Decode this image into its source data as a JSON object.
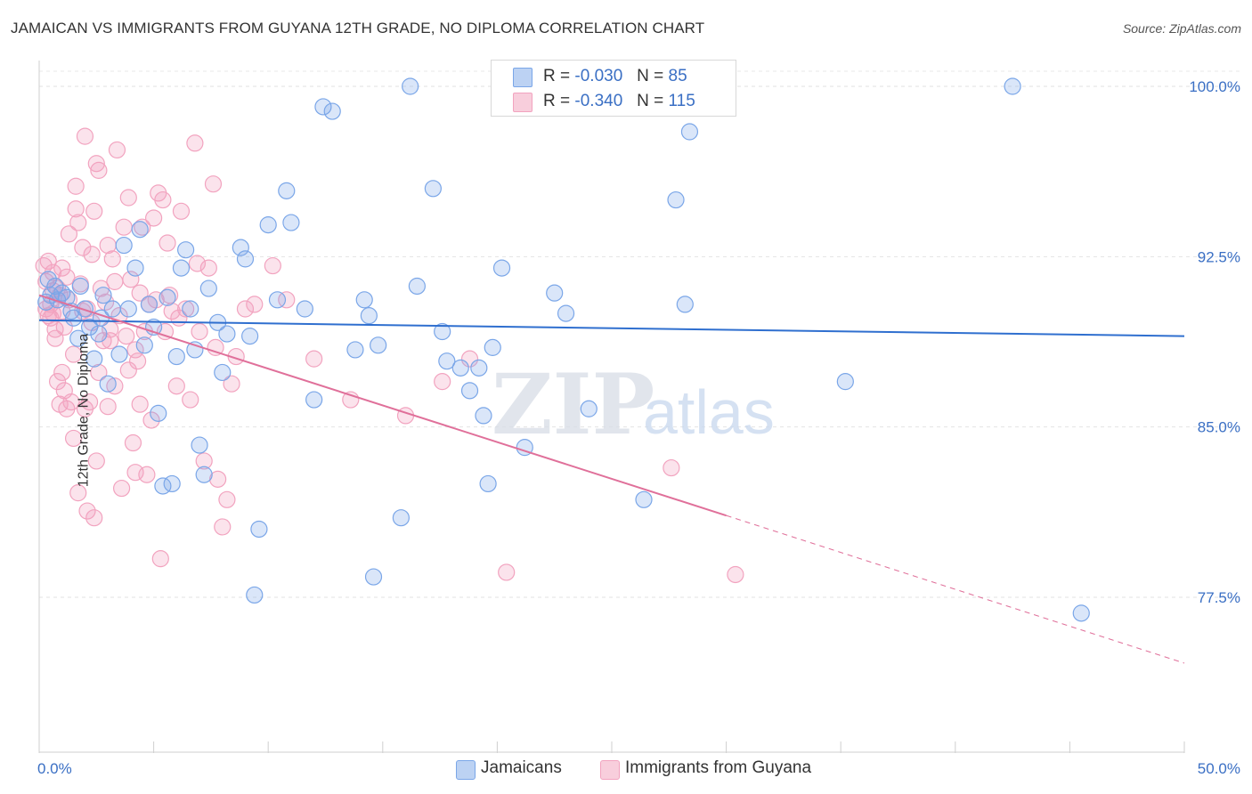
{
  "header": {
    "title": "JAMAICAN VS IMMIGRANTS FROM GUYANA 12TH GRADE, NO DIPLOMA CORRELATION CHART",
    "source": "Source: ZipAtlas.com"
  },
  "legend": {
    "r_label": "R =",
    "n_label": "N =",
    "series": [
      {
        "name": "Jamaicans",
        "r": "-0.030",
        "n": "85",
        "color": "#7aa6e8"
      },
      {
        "name": "Immigrants from Guyana",
        "r": "-0.340",
        "n": "115",
        "color": "#f2a3bf"
      }
    ]
  },
  "watermark": {
    "zip": "ZIP",
    "atlas": "atlas"
  },
  "chart_data": {
    "type": "scatter",
    "title": "JAMAICAN VS IMMIGRANTS FROM GUYANA 12TH GRADE, NO DIPLOMA CORRELATION CHART",
    "ylabel": "12th Grade, No Diploma",
    "xlabel": "",
    "xlim": [
      0,
      50
    ],
    "ylim": [
      71.0,
      101.0
    ],
    "x_tick_labels": [
      "0.0%",
      "50.0%"
    ],
    "y_ticks": [
      77.5,
      85.0,
      92.5,
      100.0
    ],
    "y_tick_labels": [
      "77.5%",
      "85.0%",
      "92.5%",
      "100.0%"
    ],
    "grid": "horizontal dashed",
    "legend_position": "top-center",
    "series": [
      {
        "name": "Jamaicans",
        "color": "#7aa6e8",
        "trend": {
          "x": [
            0,
            50
          ],
          "y": [
            89.7,
            89.0
          ],
          "dashed_from": null
        },
        "points": [
          [
            0.4,
            91.5
          ],
          [
            0.5,
            90.8
          ],
          [
            0.7,
            91.2
          ],
          [
            0.8,
            90.6
          ],
          [
            1.0,
            90.9
          ],
          [
            1.2,
            90.7
          ],
          [
            1.4,
            90.1
          ],
          [
            1.5,
            89.8
          ],
          [
            1.7,
            88.9
          ],
          [
            1.8,
            91.2
          ],
          [
            2.0,
            90.2
          ],
          [
            2.2,
            89.4
          ],
          [
            2.4,
            88.0
          ],
          [
            2.6,
            89.1
          ],
          [
            2.8,
            90.8
          ],
          [
            3.0,
            86.9
          ],
          [
            3.2,
            90.2
          ],
          [
            3.5,
            88.2
          ],
          [
            3.7,
            93.0
          ],
          [
            3.9,
            90.2
          ],
          [
            4.2,
            92.0
          ],
          [
            4.4,
            93.7
          ],
          [
            4.6,
            88.6
          ],
          [
            4.8,
            90.4
          ],
          [
            5.0,
            89.4
          ],
          [
            5.2,
            85.6
          ],
          [
            5.4,
            82.4
          ],
          [
            5.6,
            90.7
          ],
          [
            5.8,
            82.5
          ],
          [
            6.2,
            92.0
          ],
          [
            6.4,
            92.8
          ],
          [
            6.6,
            90.2
          ],
          [
            6.8,
            88.4
          ],
          [
            7.0,
            84.2
          ],
          [
            7.2,
            82.9
          ],
          [
            7.4,
            91.1
          ],
          [
            7.8,
            89.6
          ],
          [
            8.0,
            87.4
          ],
          [
            8.2,
            89.1
          ],
          [
            8.8,
            92.9
          ],
          [
            9.0,
            92.4
          ],
          [
            9.2,
            89.0
          ],
          [
            9.4,
            77.6
          ],
          [
            9.6,
            80.5
          ],
          [
            10.0,
            93.9
          ],
          [
            10.4,
            90.6
          ],
          [
            10.8,
            95.4
          ],
          [
            11.0,
            94.0
          ],
          [
            11.6,
            90.2
          ],
          [
            12.0,
            86.2
          ],
          [
            12.4,
            99.1
          ],
          [
            12.8,
            98.9
          ],
          [
            13.8,
            88.4
          ],
          [
            14.2,
            90.6
          ],
          [
            14.4,
            89.9
          ],
          [
            14.6,
            78.4
          ],
          [
            14.8,
            88.6
          ],
          [
            15.8,
            81.0
          ],
          [
            16.2,
            100.0
          ],
          [
            16.5,
            91.2
          ],
          [
            17.2,
            95.5
          ],
          [
            17.6,
            89.2
          ],
          [
            17.8,
            87.9
          ],
          [
            18.4,
            87.6
          ],
          [
            18.8,
            86.6
          ],
          [
            19.2,
            87.6
          ],
          [
            19.4,
            85.5
          ],
          [
            19.6,
            82.5
          ],
          [
            19.8,
            88.5
          ],
          [
            20.2,
            92.0
          ],
          [
            21.2,
            84.1
          ],
          [
            22.5,
            90.9
          ],
          [
            23.0,
            90.0
          ],
          [
            24.0,
            85.8
          ],
          [
            26.4,
            81.8
          ],
          [
            27.2,
            100.0
          ],
          [
            27.8,
            95.0
          ],
          [
            28.2,
            90.4
          ],
          [
            28.4,
            98.0
          ],
          [
            35.2,
            87.0
          ],
          [
            42.5,
            100.0
          ],
          [
            45.5,
            76.8
          ],
          [
            0.3,
            90.5
          ],
          [
            2.7,
            89.8
          ],
          [
            6.0,
            88.1
          ]
        ]
      },
      {
        "name": "Immigrants from Guyana",
        "color": "#f2a3bf",
        "trend": {
          "x": [
            0,
            30
          ],
          "y": [
            90.8,
            81.1
          ],
          "dashed_from": 30,
          "x_end": 50,
          "y_end": 74.6
        },
        "points": [
          [
            0.2,
            92.1
          ],
          [
            0.3,
            91.4
          ],
          [
            0.3,
            90.2
          ],
          [
            0.4,
            92.3
          ],
          [
            0.5,
            89.8
          ],
          [
            0.6,
            91.0
          ],
          [
            0.6,
            90.0
          ],
          [
            0.7,
            89.3
          ],
          [
            0.8,
            87.0
          ],
          [
            0.9,
            86.0
          ],
          [
            1.0,
            87.4
          ],
          [
            1.0,
            90.1
          ],
          [
            1.1,
            86.6
          ],
          [
            1.2,
            85.8
          ],
          [
            1.2,
            91.6
          ],
          [
            1.3,
            93.5
          ],
          [
            1.4,
            86.1
          ],
          [
            1.5,
            84.5
          ],
          [
            1.6,
            95.6
          ],
          [
            1.6,
            94.6
          ],
          [
            1.7,
            82.1
          ],
          [
            1.8,
            91.3
          ],
          [
            1.9,
            90.1
          ],
          [
            2.0,
            85.8
          ],
          [
            2.0,
            97.8
          ],
          [
            2.1,
            81.3
          ],
          [
            2.2,
            86.1
          ],
          [
            2.3,
            92.6
          ],
          [
            2.4,
            81.0
          ],
          [
            2.5,
            83.5
          ],
          [
            2.6,
            87.4
          ],
          [
            2.6,
            96.3
          ],
          [
            2.8,
            88.8
          ],
          [
            3.0,
            85.9
          ],
          [
            3.1,
            89.3
          ],
          [
            3.2,
            92.4
          ],
          [
            3.3,
            91.4
          ],
          [
            3.4,
            97.2
          ],
          [
            3.6,
            82.3
          ],
          [
            3.7,
            93.8
          ],
          [
            3.8,
            89.0
          ],
          [
            3.9,
            95.1
          ],
          [
            4.0,
            91.5
          ],
          [
            4.1,
            84.3
          ],
          [
            4.2,
            83.0
          ],
          [
            4.2,
            88.4
          ],
          [
            4.3,
            87.9
          ],
          [
            4.4,
            86.0
          ],
          [
            4.5,
            93.8
          ],
          [
            4.6,
            89.2
          ],
          [
            4.7,
            82.9
          ],
          [
            4.8,
            90.4
          ],
          [
            5.0,
            94.2
          ],
          [
            5.1,
            90.6
          ],
          [
            5.2,
            95.3
          ],
          [
            5.3,
            79.2
          ],
          [
            5.4,
            95.0
          ],
          [
            5.5,
            89.2
          ],
          [
            5.6,
            93.1
          ],
          [
            5.8,
            90.1
          ],
          [
            6.0,
            86.8
          ],
          [
            6.2,
            94.5
          ],
          [
            6.4,
            90.2
          ],
          [
            6.6,
            86.2
          ],
          [
            6.8,
            97.5
          ],
          [
            7.0,
            89.2
          ],
          [
            7.2,
            83.5
          ],
          [
            7.4,
            92.0
          ],
          [
            7.6,
            95.7
          ],
          [
            7.8,
            82.7
          ],
          [
            8.0,
            80.6
          ],
          [
            8.2,
            81.8
          ],
          [
            8.6,
            88.1
          ],
          [
            9.0,
            90.2
          ],
          [
            9.4,
            90.4
          ],
          [
            10.2,
            92.1
          ],
          [
            10.8,
            90.6
          ],
          [
            12.0,
            88.0
          ],
          [
            13.6,
            86.2
          ],
          [
            16.0,
            85.5
          ],
          [
            17.6,
            87.0
          ],
          [
            18.8,
            88.0
          ],
          [
            20.4,
            78.6
          ],
          [
            27.6,
            83.2
          ],
          [
            30.4,
            78.5
          ],
          [
            0.4,
            89.9
          ],
          [
            0.5,
            90.4
          ],
          [
            0.6,
            91.8
          ],
          [
            0.7,
            88.9
          ],
          [
            0.9,
            90.8
          ],
          [
            1.1,
            89.4
          ],
          [
            1.3,
            90.6
          ],
          [
            1.5,
            88.2
          ],
          [
            1.7,
            94.0
          ],
          [
            1.9,
            92.9
          ],
          [
            2.1,
            90.2
          ],
          [
            2.3,
            89.6
          ],
          [
            2.5,
            96.6
          ],
          [
            2.7,
            91.1
          ],
          [
            2.9,
            90.5
          ],
          [
            3.1,
            88.8
          ],
          [
            3.3,
            86.8
          ],
          [
            3.5,
            89.9
          ],
          [
            3.9,
            87.5
          ],
          [
            4.4,
            90.9
          ],
          [
            4.9,
            85.3
          ],
          [
            5.7,
            90.8
          ],
          [
            6.1,
            89.8
          ],
          [
            6.9,
            92.2
          ],
          [
            7.7,
            88.5
          ],
          [
            8.4,
            86.9
          ],
          [
            3.0,
            93.0
          ],
          [
            0.8,
            91.1
          ],
          [
            1.0,
            92.0
          ],
          [
            2.4,
            94.5
          ]
        ]
      }
    ]
  }
}
